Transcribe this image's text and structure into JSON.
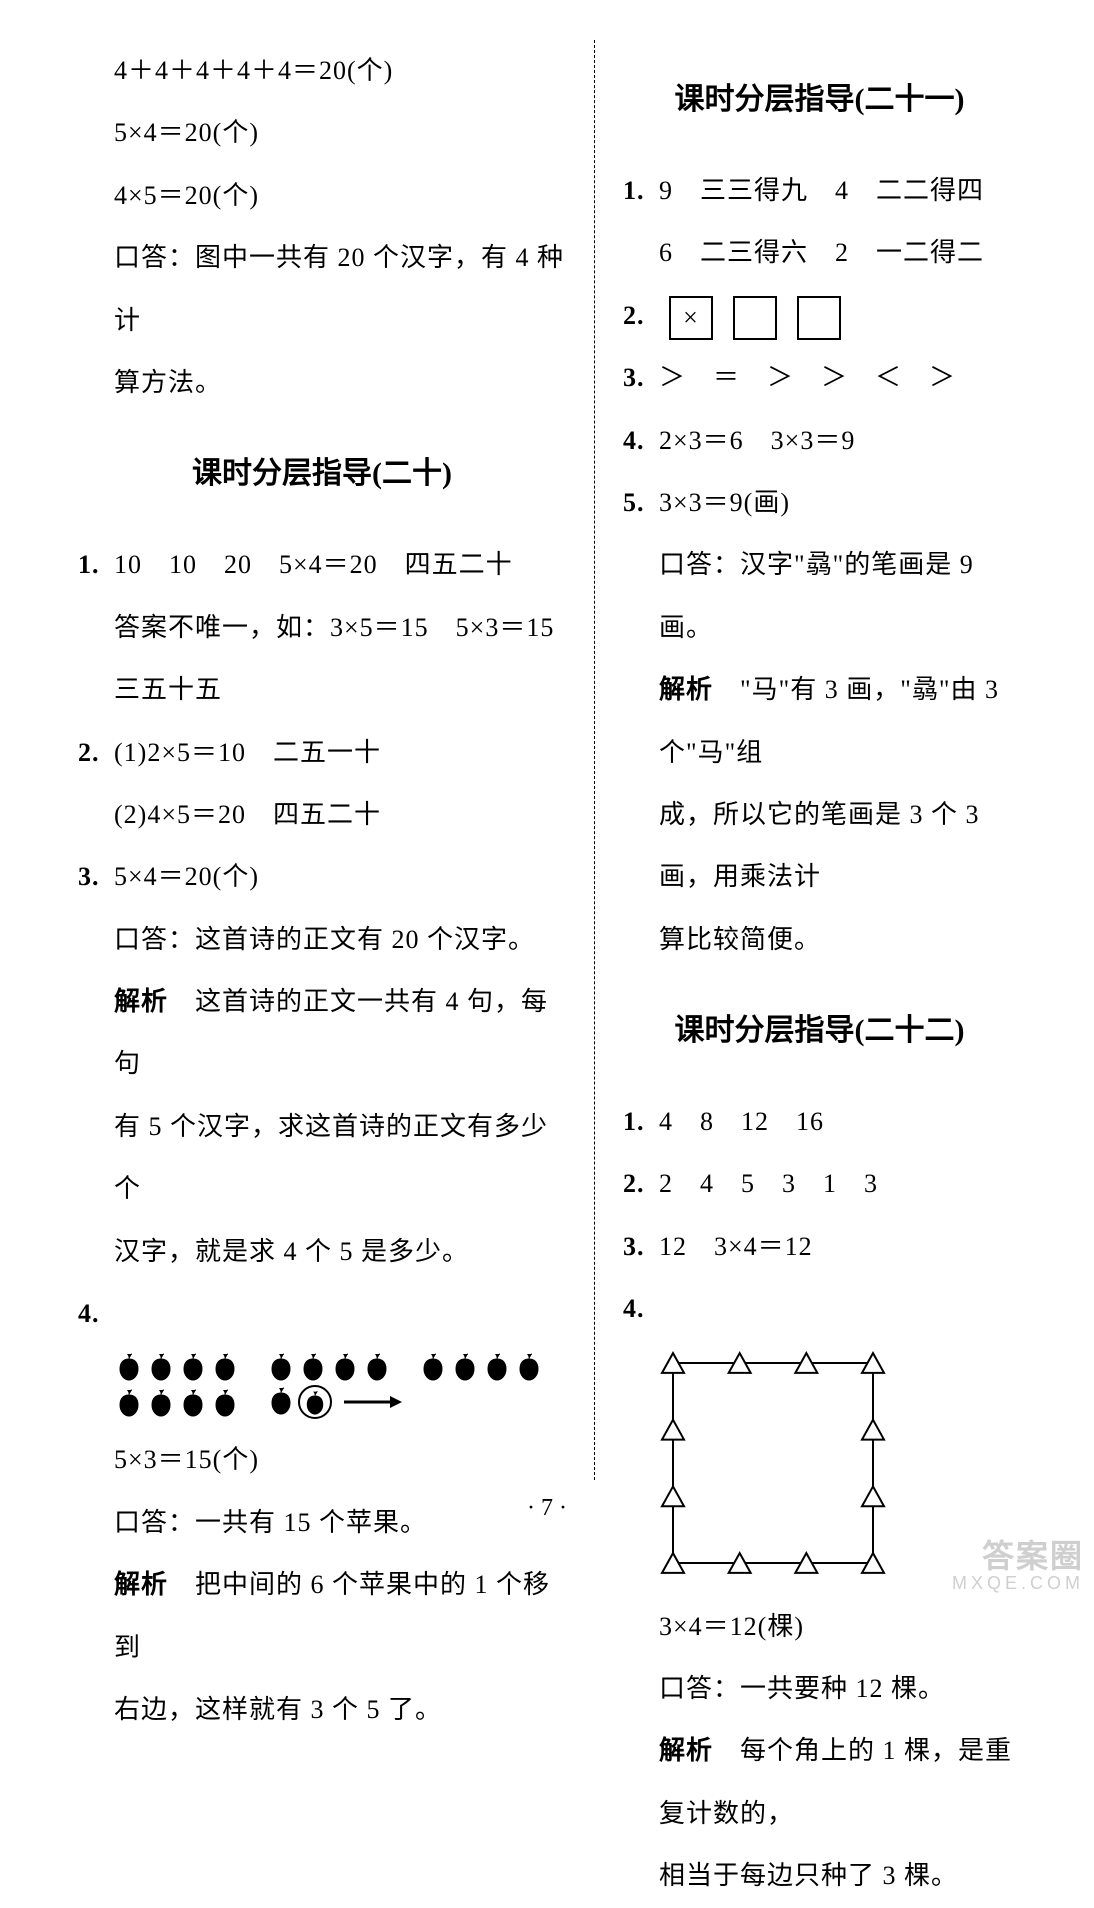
{
  "left": {
    "intro": [
      "4＋4＋4＋4＋4＝20(个)",
      "5×4＝20(个)",
      "4×5＝20(个)",
      "口答：图中一共有 20 个汉字，有 4 种计",
      "算方法。"
    ],
    "heading20": "课时分层指导(二十)",
    "q1": {
      "n": "1.",
      "l1": "10　10　20　5×4＝20　四五二十",
      "l2": "答案不唯一，如：3×5＝15　5×3＝15",
      "l3": "三五十五"
    },
    "q2": {
      "n": "2.",
      "l1": "(1)2×5＝10　二五一十",
      "l2": "(2)4×5＝20　四五二十"
    },
    "q3": {
      "n": "3.",
      "l1": "5×4＝20(个)",
      "l2": "口答：这首诗的正文有 20 个汉字。",
      "l3_label": "解析",
      "l3": "　这首诗的正文一共有 4 句，每句",
      "l4": "有 5 个汉字，求这首诗的正文有多少个",
      "l5": "汉字，就是求 4 个 5 是多少。"
    },
    "q4": {
      "n": "4.",
      "eq": "5×3＝15(个)",
      "ans": "口答：一共有 15 个苹果。",
      "jx_label": "解析",
      "jx1": "　把中间的 6 个苹果中的 1 个移到",
      "jx2": "右边，这样就有 3 个 5 了。"
    }
  },
  "right": {
    "heading21": "课时分层指导(二十一)",
    "q1": {
      "n": "1.",
      "l1": "9　三三得九　4　二二得四",
      "l2": "6　二三得六　2　一二得二"
    },
    "q2": {
      "n": "2.",
      "symbol": "×"
    },
    "q3": {
      "n": "3.",
      "l1": "＞　＝　＞　＞　＜　＞"
    },
    "q4": {
      "n": "4.",
      "l1": "2×3＝6　3×3＝9"
    },
    "q5": {
      "n": "5.",
      "l1": "3×3＝9(画)",
      "l2": "口答：汉字\"骉\"的笔画是 9 画。",
      "jx_label": "解析",
      "jx1": "　\"马\"有 3 画，\"骉\"由 3 个\"马\"组",
      "jx2": "成，所以它的笔画是 3 个 3 画，用乘法计",
      "jx3": "算比较简便。"
    },
    "heading22": "课时分层指导(二十二)",
    "s22": {
      "q1": {
        "n": "1.",
        "l1": "4　8　12　16"
      },
      "q2": {
        "n": "2.",
        "l1": "2　4　5　3　1　3"
      },
      "q3": {
        "n": "3.",
        "l1": "12　3×4＝12"
      },
      "q4": {
        "n": "4.",
        "eq": "3×4＝12(棵)",
        "ans": "口答：一共要种 12 棵。",
        "jx_label": "解析",
        "jx1": "　每个角上的 1 棵，是重复计数的，",
        "jx2": "相当于每边只种了 3 棵。"
      }
    }
  },
  "diagrams": {
    "apples": {
      "row1_groups": [
        4,
        4,
        4
      ],
      "row2": {
        "group1": 4,
        "group2_before_circle": 1,
        "circled": 1,
        "arrow": true
      },
      "fill": "#000000"
    },
    "triangle_square": {
      "size": 200,
      "triangles_per_side": 4,
      "triangle_size": 22,
      "stroke": "#000000",
      "fill": "#ffffff",
      "line_width": 2
    }
  },
  "footer": "· 7 ·",
  "watermark": {
    "l1": "答案圈",
    "l2": "MXQE.COM"
  },
  "colors": {
    "text": "#000000",
    "bg": "#ffffff",
    "watermark": "#cfcfcf"
  }
}
